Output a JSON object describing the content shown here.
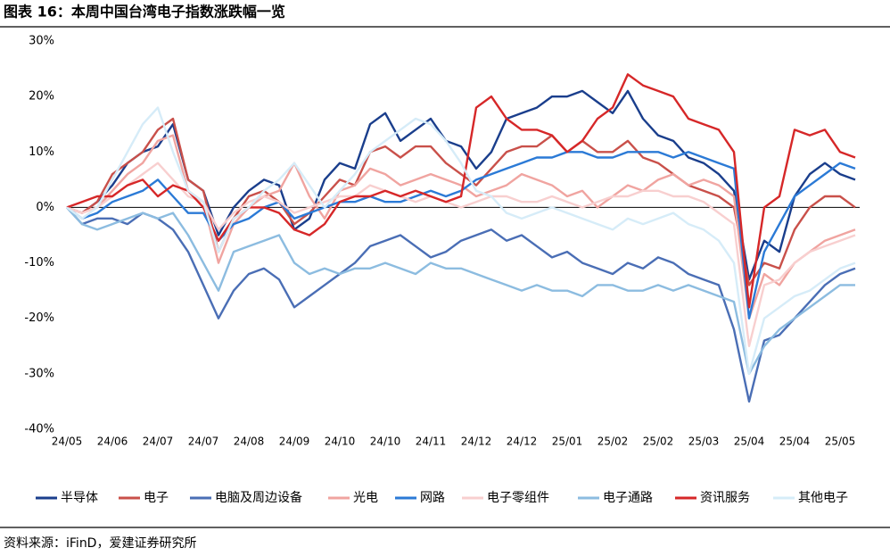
{
  "chart_data": {
    "type": "line",
    "title": "图表 16：本周中国台湾电子指数涨跌幅一览",
    "source": "资料来源：iFinD，爱建证券研究所",
    "categories": [
      "24/05",
      null,
      null,
      "24/06",
      null,
      null,
      "24/07",
      null,
      null,
      "24/07",
      null,
      null,
      "24/08",
      null,
      null,
      "24/09",
      null,
      null,
      "24/10",
      null,
      null,
      "24/10",
      null,
      null,
      "24/11",
      null,
      null,
      "24/12",
      null,
      null,
      "24/12",
      null,
      null,
      "25/01",
      null,
      null,
      "25/02",
      null,
      null,
      "25/02",
      null,
      null,
      "25/03",
      null,
      null,
      "25/04",
      null,
      null,
      "25/04",
      null,
      null,
      "25/05",
      null
    ],
    "ylim": [
      -40,
      30
    ],
    "yticks": [
      {
        "value": -40,
        "label": "-40%"
      },
      {
        "value": -30,
        "label": "-30%"
      },
      {
        "value": -20,
        "label": "-20%"
      },
      {
        "value": -10,
        "label": "-10%"
      },
      {
        "value": 0,
        "label": "0%"
      },
      {
        "value": 10,
        "label": "10%"
      },
      {
        "value": 20,
        "label": "20%"
      },
      {
        "value": 30,
        "label": "30%"
      }
    ],
    "series": [
      {
        "name": "半导体",
        "color": "#1a3e8c",
        "values": [
          0,
          -1,
          1,
          4,
          8,
          10,
          11,
          15,
          5,
          3,
          -5,
          0,
          3,
          5,
          4,
          -4,
          -2,
          5,
          8,
          7,
          15,
          17,
          12,
          14,
          16,
          12,
          11,
          7,
          10,
          16,
          17,
          18,
          20,
          20,
          21,
          19,
          17,
          21,
          16,
          13,
          12,
          9,
          8,
          6,
          3,
          -13,
          -6,
          -8,
          2,
          6,
          8,
          6,
          5
        ]
      },
      {
        "name": "电子",
        "color": "#c9504a",
        "values": [
          0,
          -1,
          1,
          6,
          8,
          10,
          14,
          16,
          5,
          3,
          -8,
          -2,
          2,
          3,
          1,
          -3,
          -1,
          2,
          5,
          4,
          10,
          11,
          9,
          11,
          11,
          8,
          6,
          4,
          7,
          10,
          11,
          11,
          13,
          10,
          12,
          10,
          10,
          12,
          9,
          8,
          6,
          4,
          3,
          2,
          0,
          -14,
          -10,
          -11,
          -4,
          0,
          2,
          2,
          0
        ]
      },
      {
        "name": "电脑及周边设备",
        "color": "#4a6eb5",
        "values": [
          0,
          -3,
          -2,
          -2,
          -3,
          -1,
          -2,
          -4,
          -8,
          -14,
          -20,
          -15,
          -12,
          -11,
          -13,
          -18,
          -16,
          -14,
          -12,
          -10,
          -7,
          -6,
          -5,
          -7,
          -9,
          -8,
          -6,
          -5,
          -4,
          -6,
          -5,
          -7,
          -9,
          -8,
          -10,
          -11,
          -12,
          -10,
          -11,
          -9,
          -10,
          -12,
          -13,
          -14,
          -22,
          -35,
          -24,
          -23,
          -20,
          -17,
          -14,
          -12,
          -11
        ]
      },
      {
        "name": "光电",
        "color": "#f0a4a0",
        "values": [
          0,
          -1,
          0,
          3,
          6,
          8,
          12,
          13,
          3,
          1,
          -10,
          -3,
          0,
          2,
          3,
          8,
          2,
          -2,
          3,
          4,
          7,
          6,
          4,
          5,
          6,
          5,
          4,
          2,
          3,
          4,
          6,
          5,
          4,
          2,
          3,
          0,
          2,
          4,
          3,
          5,
          6,
          4,
          5,
          4,
          2,
          -20,
          -12,
          -14,
          -10,
          -8,
          -6,
          -5,
          -4
        ]
      },
      {
        "name": "网路",
        "color": "#2b7ad6",
        "values": [
          0,
          -2,
          -1,
          1,
          2,
          3,
          5,
          2,
          -1,
          -1,
          -6,
          -3,
          -2,
          0,
          1,
          -2,
          -1,
          0,
          1,
          1,
          2,
          1,
          1,
          2,
          3,
          2,
          3,
          5,
          6,
          7,
          8,
          9,
          9,
          10,
          10,
          9,
          9,
          10,
          10,
          10,
          9,
          10,
          9,
          8,
          7,
          -20,
          -8,
          -3,
          2,
          4,
          6,
          8,
          7
        ]
      },
      {
        "name": "电子零组件",
        "color": "#f8cfcf",
        "values": [
          0,
          -1,
          0,
          2,
          4,
          6,
          8,
          5,
          2,
          1,
          -4,
          -1,
          1,
          2,
          1,
          -1,
          0,
          1,
          2,
          2,
          4,
          3,
          2,
          1,
          2,
          1,
          0,
          1,
          2,
          2,
          1,
          1,
          2,
          1,
          0,
          1,
          2,
          2,
          3,
          3,
          2,
          2,
          1,
          -1,
          -3,
          -25,
          -14,
          -13,
          -10,
          -8,
          -7,
          -6,
          -5
        ]
      },
      {
        "name": "电子通路",
        "color": "#8cbce0",
        "values": [
          0,
          -3,
          -4,
          -3,
          -2,
          -1,
          -2,
          -1,
          -5,
          -10,
          -15,
          -8,
          -7,
          -6,
          -5,
          -10,
          -12,
          -11,
          -12,
          -11,
          -11,
          -10,
          -11,
          -12,
          -10,
          -11,
          -11,
          -12,
          -13,
          -14,
          -15,
          -14,
          -15,
          -15,
          -16,
          -14,
          -14,
          -15,
          -15,
          -14,
          -15,
          -14,
          -15,
          -16,
          -17,
          -30,
          -25,
          -22,
          -20,
          -18,
          -16,
          -14,
          -14
        ]
      },
      {
        "name": "资讯服务",
        "color": "#d62728",
        "values": [
          0,
          1,
          2,
          2,
          4,
          5,
          2,
          4,
          3,
          0,
          -6,
          -2,
          0,
          0,
          -1,
          -4,
          -5,
          -3,
          1,
          2,
          2,
          3,
          2,
          3,
          2,
          1,
          2,
          18,
          20,
          16,
          14,
          14,
          13,
          10,
          12,
          16,
          18,
          24,
          22,
          21,
          20,
          16,
          15,
          14,
          10,
          -18,
          0,
          2,
          14,
          13,
          14,
          10,
          9
        ]
      },
      {
        "name": "其他电子",
        "color": "#d6ecf8",
        "values": [
          0,
          -2,
          0,
          5,
          10,
          15,
          18,
          10,
          3,
          1,
          -8,
          -2,
          0,
          3,
          5,
          8,
          4,
          0,
          3,
          6,
          10,
          12,
          14,
          16,
          15,
          12,
          8,
          3,
          2,
          -1,
          -2,
          -1,
          0,
          -1,
          -2,
          -3,
          -4,
          -2,
          -3,
          -2,
          -1,
          -3,
          -4,
          -6,
          -10,
          -30,
          -20,
          -18,
          -16,
          -15,
          -13,
          -11,
          -10
        ]
      }
    ]
  }
}
